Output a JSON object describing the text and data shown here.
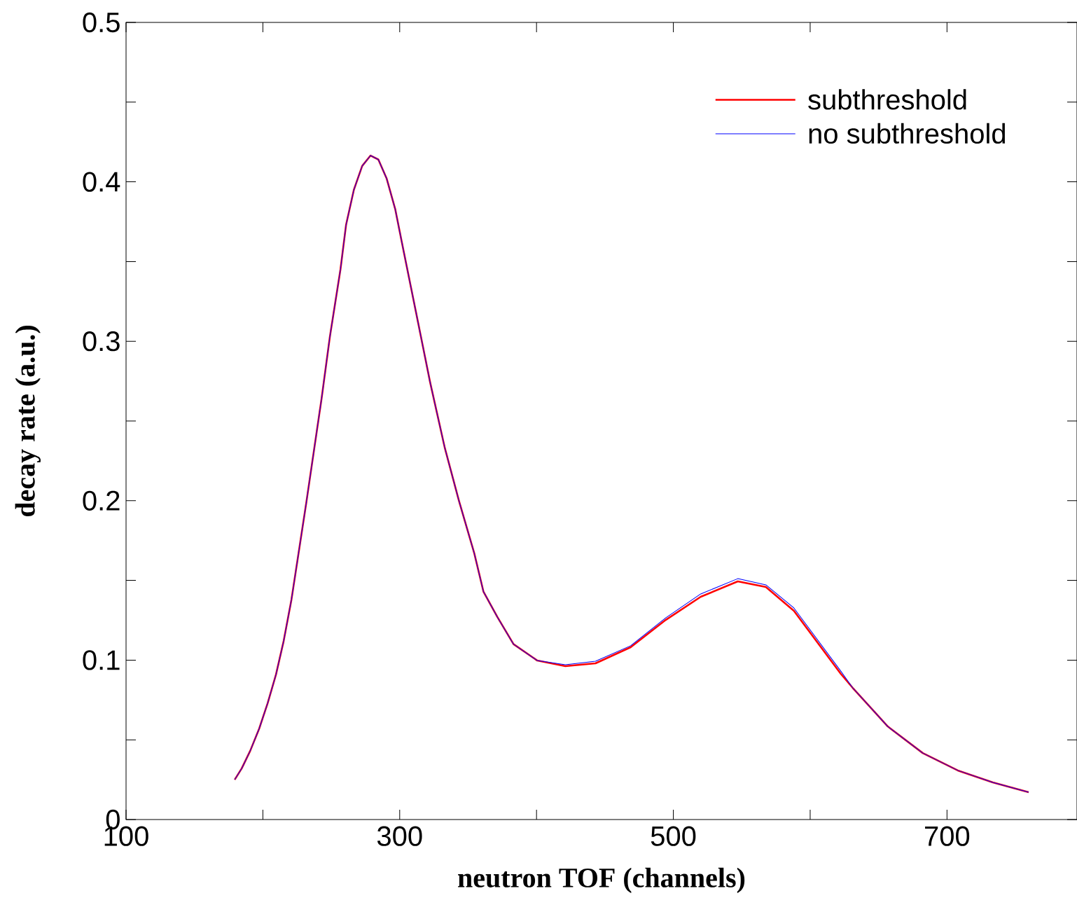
{
  "chart_data": {
    "type": "line",
    "xlabel": "neutron TOF (channels)",
    "ylabel": "decay rate (a.u.)",
    "xlim": [
      100,
      795
    ],
    "ylim": [
      0,
      0.5
    ],
    "xticks": [
      100,
      {
        "value": 200,
        "label": null
      },
      300,
      {
        "value": 400,
        "label": null
      },
      500,
      {
        "value": 600,
        "label": null
      },
      700
    ],
    "yticks": [
      0,
      {
        "value": 0.05,
        "label": null
      },
      0.1,
      {
        "value": 0.15,
        "label": null
      },
      0.2,
      {
        "value": 0.25,
        "label": null
      },
      0.3,
      {
        "value": 0.35,
        "label": null
      },
      0.4,
      {
        "value": 0.45,
        "label": null
      },
      0.5
    ],
    "legend": "top right",
    "grid": false,
    "marker": "none",
    "line_style": "solid",
    "x": [
      179.4,
      184.5,
      190.7,
      197.3,
      203.5,
      209.6,
      215.2,
      220.9,
      231.6,
      242.9,
      249.0,
      256.7,
      260.8,
      266.5,
      272.6,
      278.7,
      284.4,
      290.5,
      296.7,
      302.3,
      311.5,
      322.3,
      333.0,
      343.3,
      354.5,
      361.2,
      371.4,
      383.2,
      400.6,
      421.1,
      443.1,
      468.8,
      494.4,
      520.0,
      547.1,
      567.6,
      588.1,
      622.4,
      631.1,
      656.7,
      682.3,
      707.9,
      733.5,
      759.7
    ],
    "series": [
      {
        "name": "subthreshold",
        "color": "#ff0000",
        "values": [
          0.025,
          0.032,
          0.043,
          0.057,
          0.073,
          0.091,
          0.112,
          0.138,
          0.198,
          0.264,
          0.303,
          0.345,
          0.373,
          0.395,
          0.41,
          0.4165,
          0.414,
          0.402,
          0.383,
          0.359,
          0.32,
          0.274,
          0.233,
          0.2,
          0.167,
          0.143,
          0.127,
          0.11,
          0.0997,
          0.0962,
          0.098,
          0.1081,
          0.1252,
          0.1397,
          0.1494,
          0.1459,
          0.1309,
          0.0914,
          0.0826,
          0.0584,
          0.0417,
          0.0308,
          0.0233,
          0.0171
        ]
      },
      {
        "name": "no subthreshold",
        "color": "#0000ff",
        "values": [
          0.025,
          0.032,
          0.043,
          0.057,
          0.073,
          0.091,
          0.112,
          0.138,
          0.198,
          0.264,
          0.303,
          0.345,
          0.373,
          0.395,
          0.41,
          0.4165,
          0.414,
          0.402,
          0.383,
          0.359,
          0.32,
          0.274,
          0.233,
          0.2,
          0.167,
          0.143,
          0.127,
          0.11,
          0.0997,
          0.0971,
          0.0993,
          0.109,
          0.1265,
          0.1415,
          0.1511,
          0.1472,
          0.1327,
          0.0931,
          0.0826,
          0.0584,
          0.0417,
          0.0308,
          0.0233,
          0.0171
        ]
      }
    ]
  }
}
